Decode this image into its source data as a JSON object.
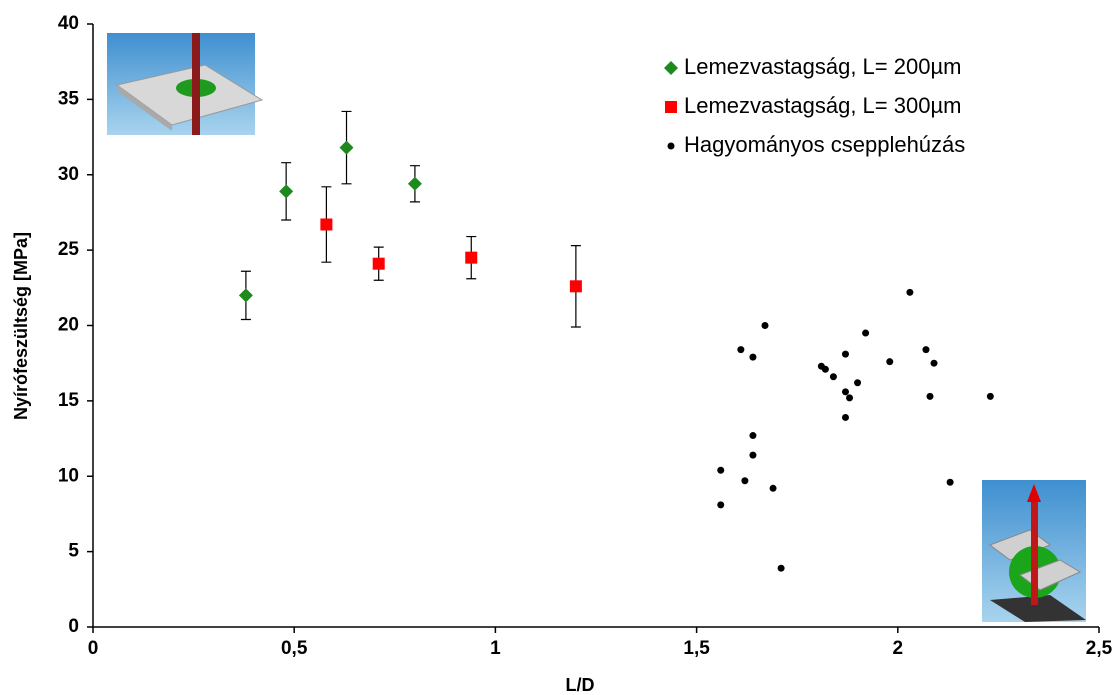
{
  "chart_data": {
    "type": "scatter",
    "xlabel": "L/D",
    "ylabel": "Nyírófeszültség  [MPa]",
    "xlim": [
      0,
      2.5
    ],
    "ylim": [
      0,
      40
    ],
    "xticks": [
      0,
      {
        "value": 0.5,
        "label": "0,5"
      },
      1,
      {
        "value": 1.5,
        "label": "1,5"
      },
      2,
      {
        "value": 2.5,
        "label": "2,5"
      }
    ],
    "yticks": [
      0,
      5,
      10,
      15,
      20,
      25,
      30,
      35,
      40
    ],
    "legend": "top-right",
    "series": [
      {
        "name": "Lemezvastagság, L= 200µm",
        "color": "#1e8a1e",
        "marker": "diamond",
        "x": [
          0.38,
          0.48,
          0.63,
          0.8
        ],
        "values": [
          22.0,
          28.9,
          31.8,
          29.4
        ],
        "errors": [
          1.6,
          1.9,
          2.4,
          1.2
        ]
      },
      {
        "name": "Lemezvastagság, L= 300µm",
        "color": "#ff0000",
        "marker": "square",
        "x": [
          0.58,
          0.71,
          0.94,
          1.2
        ],
        "values": [
          26.7,
          24.1,
          24.5,
          22.6
        ],
        "errors": [
          2.5,
          1.1,
          1.4,
          2.7
        ]
      },
      {
        "name": "Hagyományos csepplehúzás",
        "color": "#000000",
        "marker": "circle",
        "x": [
          1.61,
          1.64,
          1.67,
          1.56,
          1.56,
          1.62,
          1.64,
          1.64,
          1.69,
          1.71,
          1.81,
          1.82,
          1.84,
          1.87,
          1.87,
          1.87,
          1.88,
          1.9,
          1.92,
          1.98,
          2.03,
          2.07,
          2.09,
          2.08,
          2.13,
          2.23
        ],
        "values": [
          18.4,
          17.9,
          20.0,
          10.4,
          8.1,
          9.7,
          12.7,
          11.4,
          9.2,
          3.9,
          17.3,
          17.1,
          16.6,
          18.1,
          13.9,
          15.6,
          15.2,
          16.2,
          19.5,
          17.6,
          22.2,
          18.4,
          17.5,
          15.3,
          9.6,
          15.3
        ]
      }
    ]
  }
}
